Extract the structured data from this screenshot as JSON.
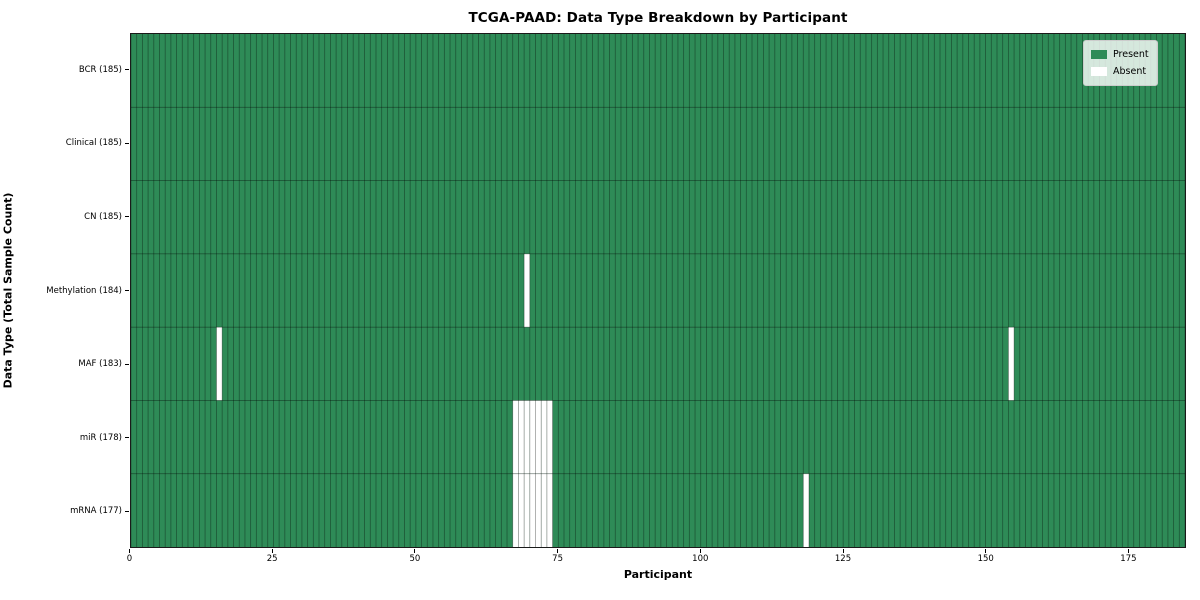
{
  "chart_data": {
    "type": "heatmap",
    "title": "TCGA-PAAD: Data Type Breakdown by Participant",
    "xlabel": "Participant",
    "ylabel": "Data Type (Total Sample Count)",
    "n_participants": 185,
    "x_range": [
      0,
      185
    ],
    "x_ticks": [
      0,
      25,
      50,
      75,
      100,
      125,
      150,
      175
    ],
    "legend_position": "upper right",
    "grid": "cell borders on",
    "colors": {
      "present": "#2e8b57",
      "absent": "#ffffff",
      "cell_edge": "#000000",
      "cell_edge_opacity": 0.38,
      "spine": "#1a1a1a",
      "legend_border": "#cccccc"
    },
    "legend": [
      {
        "label": "Present",
        "color": "#2e8b57"
      },
      {
        "label": "Absent",
        "color": "#ffffff"
      }
    ],
    "rows": [
      {
        "label": "BCR (185)",
        "data_type": "BCR",
        "total": 185,
        "absent_participants": []
      },
      {
        "label": "Clinical (185)",
        "data_type": "Clinical",
        "total": 185,
        "absent_participants": []
      },
      {
        "label": "CN (185)",
        "data_type": "CN",
        "total": 185,
        "absent_participants": []
      },
      {
        "label": "Methylation (184)",
        "data_type": "Methylation",
        "total": 184,
        "absent_participants": [
          69
        ]
      },
      {
        "label": "MAF (183)",
        "data_type": "MAF",
        "total": 183,
        "absent_participants": [
          15,
          154
        ]
      },
      {
        "label": "miR (178)",
        "data_type": "miR",
        "total": 178,
        "absent_participants": [
          67,
          68,
          69,
          70,
          71,
          72,
          73
        ]
      },
      {
        "label": "mRNA (177)",
        "data_type": "mRNA",
        "total": 177,
        "absent_participants": [
          67,
          68,
          69,
          70,
          71,
          72,
          73,
          118
        ]
      }
    ]
  }
}
